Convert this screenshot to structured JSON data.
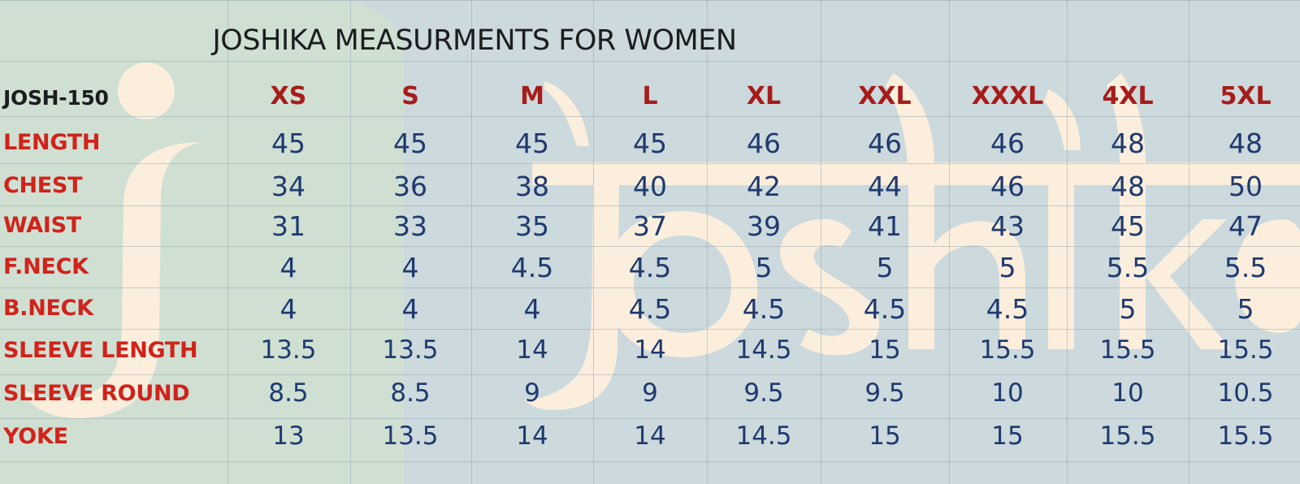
{
  "title": "JOSHIKA MEASURMENTS FOR WOMEN",
  "watermark_text": "joshika",
  "colors": {
    "label_red": "#d1231b",
    "size_red": "#a61c1a",
    "value_navy": "#1f3a6e",
    "style_black": "#1b1d1e",
    "watermark": "#fbeedd"
  },
  "table": {
    "style_code": "JOSH-150",
    "sizes": [
      "XS",
      "S",
      "M",
      "L",
      "XL",
      "XXL",
      "XXXL",
      "4XL",
      "5XL"
    ],
    "rows": [
      {
        "label": "LENGTH",
        "values": [
          "45",
          "45",
          "45",
          "45",
          "46",
          "46",
          "46",
          "48",
          "48"
        ]
      },
      {
        "label": "CHEST",
        "values": [
          "34",
          "36",
          "38",
          "40",
          "42",
          "44",
          "46",
          "48",
          "50"
        ]
      },
      {
        "label": "WAIST",
        "values": [
          "31",
          "33",
          "35",
          "37",
          "39",
          "41",
          "43",
          "45",
          "47"
        ]
      },
      {
        "label": "F.NECK",
        "values": [
          "4",
          "4",
          "4.5",
          "4.5",
          "5",
          "5",
          "5",
          "5.5",
          "5.5"
        ]
      },
      {
        "label": "B.NECK",
        "values": [
          "4",
          "4",
          "4",
          "4.5",
          "4.5",
          "4.5",
          "4.5",
          "5",
          "5"
        ]
      },
      {
        "label": "SLEEVE LENGTH",
        "values": [
          "13.5",
          "13.5",
          "14",
          "14",
          "14.5",
          "15",
          "15.5",
          "15.5",
          "15.5"
        ]
      },
      {
        "label": "SLEEVE ROUND",
        "values": [
          "8.5",
          "8.5",
          "9",
          "9",
          "9.5",
          "9.5",
          "10",
          "10",
          "10.5"
        ]
      },
      {
        "label": "YOKE",
        "values": [
          "13",
          "13.5",
          "14",
          "14",
          "14.5",
          "15",
          "15",
          "15.5",
          "15.5"
        ]
      }
    ]
  }
}
